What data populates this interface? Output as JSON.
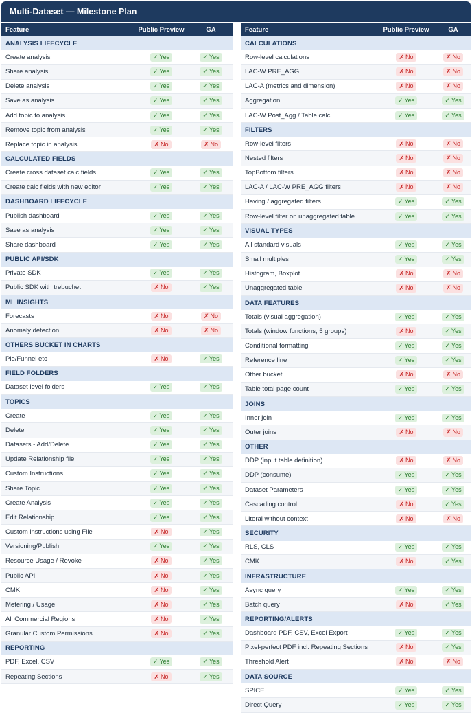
{
  "title": "Multi-Dataset — Milestone Plan",
  "colors": {
    "header_bg": "#1e3a5f",
    "section_bg": "#dde7f4",
    "yes_bg": "#dcf0dc",
    "yes_fg": "#2e7d32",
    "no_bg": "#fbe0e0",
    "no_fg": "#c62828"
  },
  "badges": {
    "yes": "Yes",
    "no": "No",
    "yes_icon": "✓",
    "no_icon": "✗"
  },
  "columns": {
    "feature": "Feature",
    "preview": "Public Preview",
    "ga": "GA"
  },
  "left_table": [
    {
      "section": "ANALYSIS LIFECYCLE",
      "rows": [
        {
          "feature": "Create analysis",
          "preview": "yes",
          "ga": "yes"
        },
        {
          "feature": "Share analysis",
          "preview": "yes",
          "ga": "yes"
        },
        {
          "feature": "Delete analysis",
          "preview": "yes",
          "ga": "yes"
        },
        {
          "feature": "Save as analysis",
          "preview": "yes",
          "ga": "yes"
        },
        {
          "feature": "Add topic to analysis",
          "preview": "yes",
          "ga": "yes"
        },
        {
          "feature": "Remove topic from analysis",
          "preview": "yes",
          "ga": "yes"
        },
        {
          "feature": "Replace topic in analysis",
          "preview": "no",
          "ga": "no"
        }
      ]
    },
    {
      "section": "CALCULATED FIELDS",
      "rows": [
        {
          "feature": "Create cross dataset calc fields",
          "preview": "yes",
          "ga": "yes"
        },
        {
          "feature": "Create calc fields with new editor",
          "preview": "yes",
          "ga": "yes"
        }
      ]
    },
    {
      "section": "DASHBOARD LIFECYCLE",
      "rows": [
        {
          "feature": "Publish dashboard",
          "preview": "yes",
          "ga": "yes"
        },
        {
          "feature": "Save as analysis",
          "preview": "yes",
          "ga": "yes"
        },
        {
          "feature": "Share dashboard",
          "preview": "yes",
          "ga": "yes"
        }
      ]
    },
    {
      "section": "PUBLIC API/SDK",
      "rows": [
        {
          "feature": "Private SDK",
          "preview": "yes",
          "ga": "yes"
        },
        {
          "feature": "Public SDK with trebuchet",
          "preview": "no",
          "ga": "yes"
        }
      ]
    },
    {
      "section": "ML INSIGHTS",
      "rows": [
        {
          "feature": "Forecasts",
          "preview": "no",
          "ga": "no"
        },
        {
          "feature": "Anomaly detection",
          "preview": "no",
          "ga": "no"
        }
      ]
    },
    {
      "section": "OTHERS BUCKET IN CHARTS",
      "rows": [
        {
          "feature": "Pie/Funnel etc",
          "preview": "no",
          "ga": "yes"
        }
      ]
    },
    {
      "section": "FIELD FOLDERS",
      "rows": [
        {
          "feature": "Dataset level folders",
          "preview": "yes",
          "ga": "yes"
        }
      ]
    },
    {
      "section": "TOPICS",
      "rows": [
        {
          "feature": "Create",
          "preview": "yes",
          "ga": "yes"
        },
        {
          "feature": "Delete",
          "preview": "yes",
          "ga": "yes"
        },
        {
          "feature": "Datasets - Add/Delete",
          "preview": "yes",
          "ga": "yes"
        },
        {
          "feature": "Update Relationship file",
          "preview": "yes",
          "ga": "yes"
        },
        {
          "feature": "Custom Instructions",
          "preview": "yes",
          "ga": "yes"
        },
        {
          "feature": "Share Topic",
          "preview": "yes",
          "ga": "yes"
        },
        {
          "feature": "Create Analysis",
          "preview": "yes",
          "ga": "yes"
        },
        {
          "feature": "Edit Relationship",
          "preview": "yes",
          "ga": "yes"
        },
        {
          "feature": "Custom instructions using File",
          "preview": "no",
          "ga": "yes"
        },
        {
          "feature": "Versioning/Publish",
          "preview": "yes",
          "ga": "yes"
        },
        {
          "feature": "Resource Usage / Revoke",
          "preview": "no",
          "ga": "yes"
        },
        {
          "feature": "Public API",
          "preview": "no",
          "ga": "yes"
        },
        {
          "feature": "CMK",
          "preview": "no",
          "ga": "yes"
        },
        {
          "feature": "Metering / Usage",
          "preview": "no",
          "ga": "yes"
        },
        {
          "feature": "All Commercial Regions",
          "preview": "no",
          "ga": "yes"
        },
        {
          "feature": "Granular Custom Permissions",
          "preview": "no",
          "ga": "yes"
        }
      ]
    },
    {
      "section": "REPORTING",
      "rows": [
        {
          "feature": "PDF, Excel, CSV",
          "preview": "yes",
          "ga": "yes"
        },
        {
          "feature": "Repeating Sections",
          "preview": "no",
          "ga": "yes"
        }
      ]
    }
  ],
  "right_table": [
    {
      "section": "CALCULATIONS",
      "rows": [
        {
          "feature": "Row-level calculations",
          "preview": "no",
          "ga": "no"
        },
        {
          "feature": "LAC-W PRE_AGG",
          "preview": "no",
          "ga": "no"
        },
        {
          "feature": "LAC-A (metrics and dimension)",
          "preview": "no",
          "ga": "no"
        },
        {
          "feature": "Aggregation",
          "preview": "yes",
          "ga": "yes"
        },
        {
          "feature": "LAC-W Post_Agg / Table calc",
          "preview": "yes",
          "ga": "yes"
        }
      ]
    },
    {
      "section": "FILTERS",
      "rows": [
        {
          "feature": "Row-level filters",
          "preview": "no",
          "ga": "no"
        },
        {
          "feature": "Nested filters",
          "preview": "no",
          "ga": "no"
        },
        {
          "feature": "TopBottom filters",
          "preview": "no",
          "ga": "no"
        },
        {
          "feature": "LAC-A / LAC-W PRE_AGG filters",
          "preview": "no",
          "ga": "no"
        },
        {
          "feature": "Having / aggregated filters",
          "preview": "yes",
          "ga": "yes"
        },
        {
          "feature": "Row-level filter on unaggregated table",
          "preview": "yes",
          "ga": "yes"
        }
      ]
    },
    {
      "section": "VISUAL TYPES",
      "rows": [
        {
          "feature": "All standard visuals",
          "preview": "yes",
          "ga": "yes"
        },
        {
          "feature": "Small multiples",
          "preview": "yes",
          "ga": "yes"
        },
        {
          "feature": "Histogram, Boxplot",
          "preview": "no",
          "ga": "no"
        },
        {
          "feature": "Unaggregated table",
          "preview": "no",
          "ga": "no"
        }
      ]
    },
    {
      "section": "DATA FEATURES",
      "rows": [
        {
          "feature": "Totals (visual aggregation)",
          "preview": "yes",
          "ga": "yes"
        },
        {
          "feature": "Totals (window functions, 5 groups)",
          "preview": "no",
          "ga": "yes"
        },
        {
          "feature": "Conditional formatting",
          "preview": "yes",
          "ga": "yes"
        },
        {
          "feature": "Reference line",
          "preview": "yes",
          "ga": "yes"
        },
        {
          "feature": "Other bucket",
          "preview": "no",
          "ga": "no"
        },
        {
          "feature": "Table total page count",
          "preview": "yes",
          "ga": "yes"
        }
      ]
    },
    {
      "section": "JOINS",
      "rows": [
        {
          "feature": "Inner join",
          "preview": "yes",
          "ga": "yes"
        },
        {
          "feature": "Outer joins",
          "preview": "no",
          "ga": "no"
        }
      ]
    },
    {
      "section": "OTHER",
      "rows": [
        {
          "feature": "DDP (input table definition)",
          "preview": "no",
          "ga": "no"
        },
        {
          "feature": "DDP (consume)",
          "preview": "yes",
          "ga": "yes"
        },
        {
          "feature": "Dataset Parameters",
          "preview": "yes",
          "ga": "yes"
        },
        {
          "feature": "Cascading control",
          "preview": "no",
          "ga": "yes"
        },
        {
          "feature": "Literal without context",
          "preview": "no",
          "ga": "no"
        }
      ]
    },
    {
      "section": "SECURITY",
      "rows": [
        {
          "feature": "RLS, CLS",
          "preview": "yes",
          "ga": "yes"
        },
        {
          "feature": "CMK",
          "preview": "no",
          "ga": "yes"
        }
      ]
    },
    {
      "section": "INFRASTRUCTURE",
      "rows": [
        {
          "feature": "Async query",
          "preview": "yes",
          "ga": "yes"
        },
        {
          "feature": "Batch query",
          "preview": "no",
          "ga": "yes"
        }
      ]
    },
    {
      "section": "REPORTING/ALERTS",
      "rows": [
        {
          "feature": "Dashboard PDF, CSV, Excel Export",
          "preview": "yes",
          "ga": "yes"
        },
        {
          "feature": "Pixel-perfect PDF incl. Repeating Sections",
          "preview": "no",
          "ga": "yes"
        },
        {
          "feature": "Threshold Alert",
          "preview": "no",
          "ga": "no"
        }
      ]
    },
    {
      "section": "DATA SOURCE",
      "rows": [
        {
          "feature": "SPICE",
          "preview": "yes",
          "ga": "yes"
        },
        {
          "feature": "Direct Query",
          "preview": "yes",
          "ga": "yes"
        }
      ]
    }
  ]
}
